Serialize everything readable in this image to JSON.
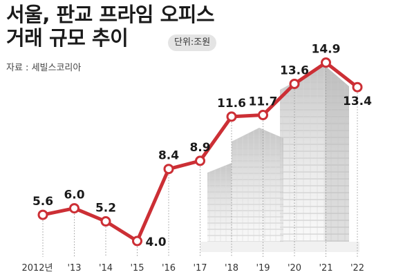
{
  "title_lines": [
    "서울, 판교 프라임 오피스",
    "거래 규모 추이"
  ],
  "unit": "단위:조원",
  "source": "자료 : 세빌스코리아",
  "colors": {
    "line": "#cc2f35",
    "marker_fill": "#ffffff",
    "text": "#1a1a1a",
    "grid": "#999999"
  },
  "chart_data": {
    "type": "line",
    "categories": [
      "2012년",
      "'13",
      "'14",
      "'15",
      "'16",
      "'17",
      "'18",
      "'19",
      "'20",
      "'21",
      "'22"
    ],
    "values": [
      5.6,
      6.0,
      5.2,
      4.0,
      8.4,
      8.9,
      11.6,
      11.7,
      13.6,
      14.9,
      13.4
    ],
    "data_labels": [
      "5.6",
      "6.0",
      "5.2",
      "4.0",
      "8.4",
      "8.9",
      "11.6",
      "11.7",
      "13.6",
      "14.9",
      "13.4"
    ],
    "title": "서울, 판교 프라임 오피스 거래 규모 추이",
    "xlabel": "",
    "ylabel": "",
    "unit": "조원",
    "grid": "vertical dotted",
    "legend": "none"
  }
}
